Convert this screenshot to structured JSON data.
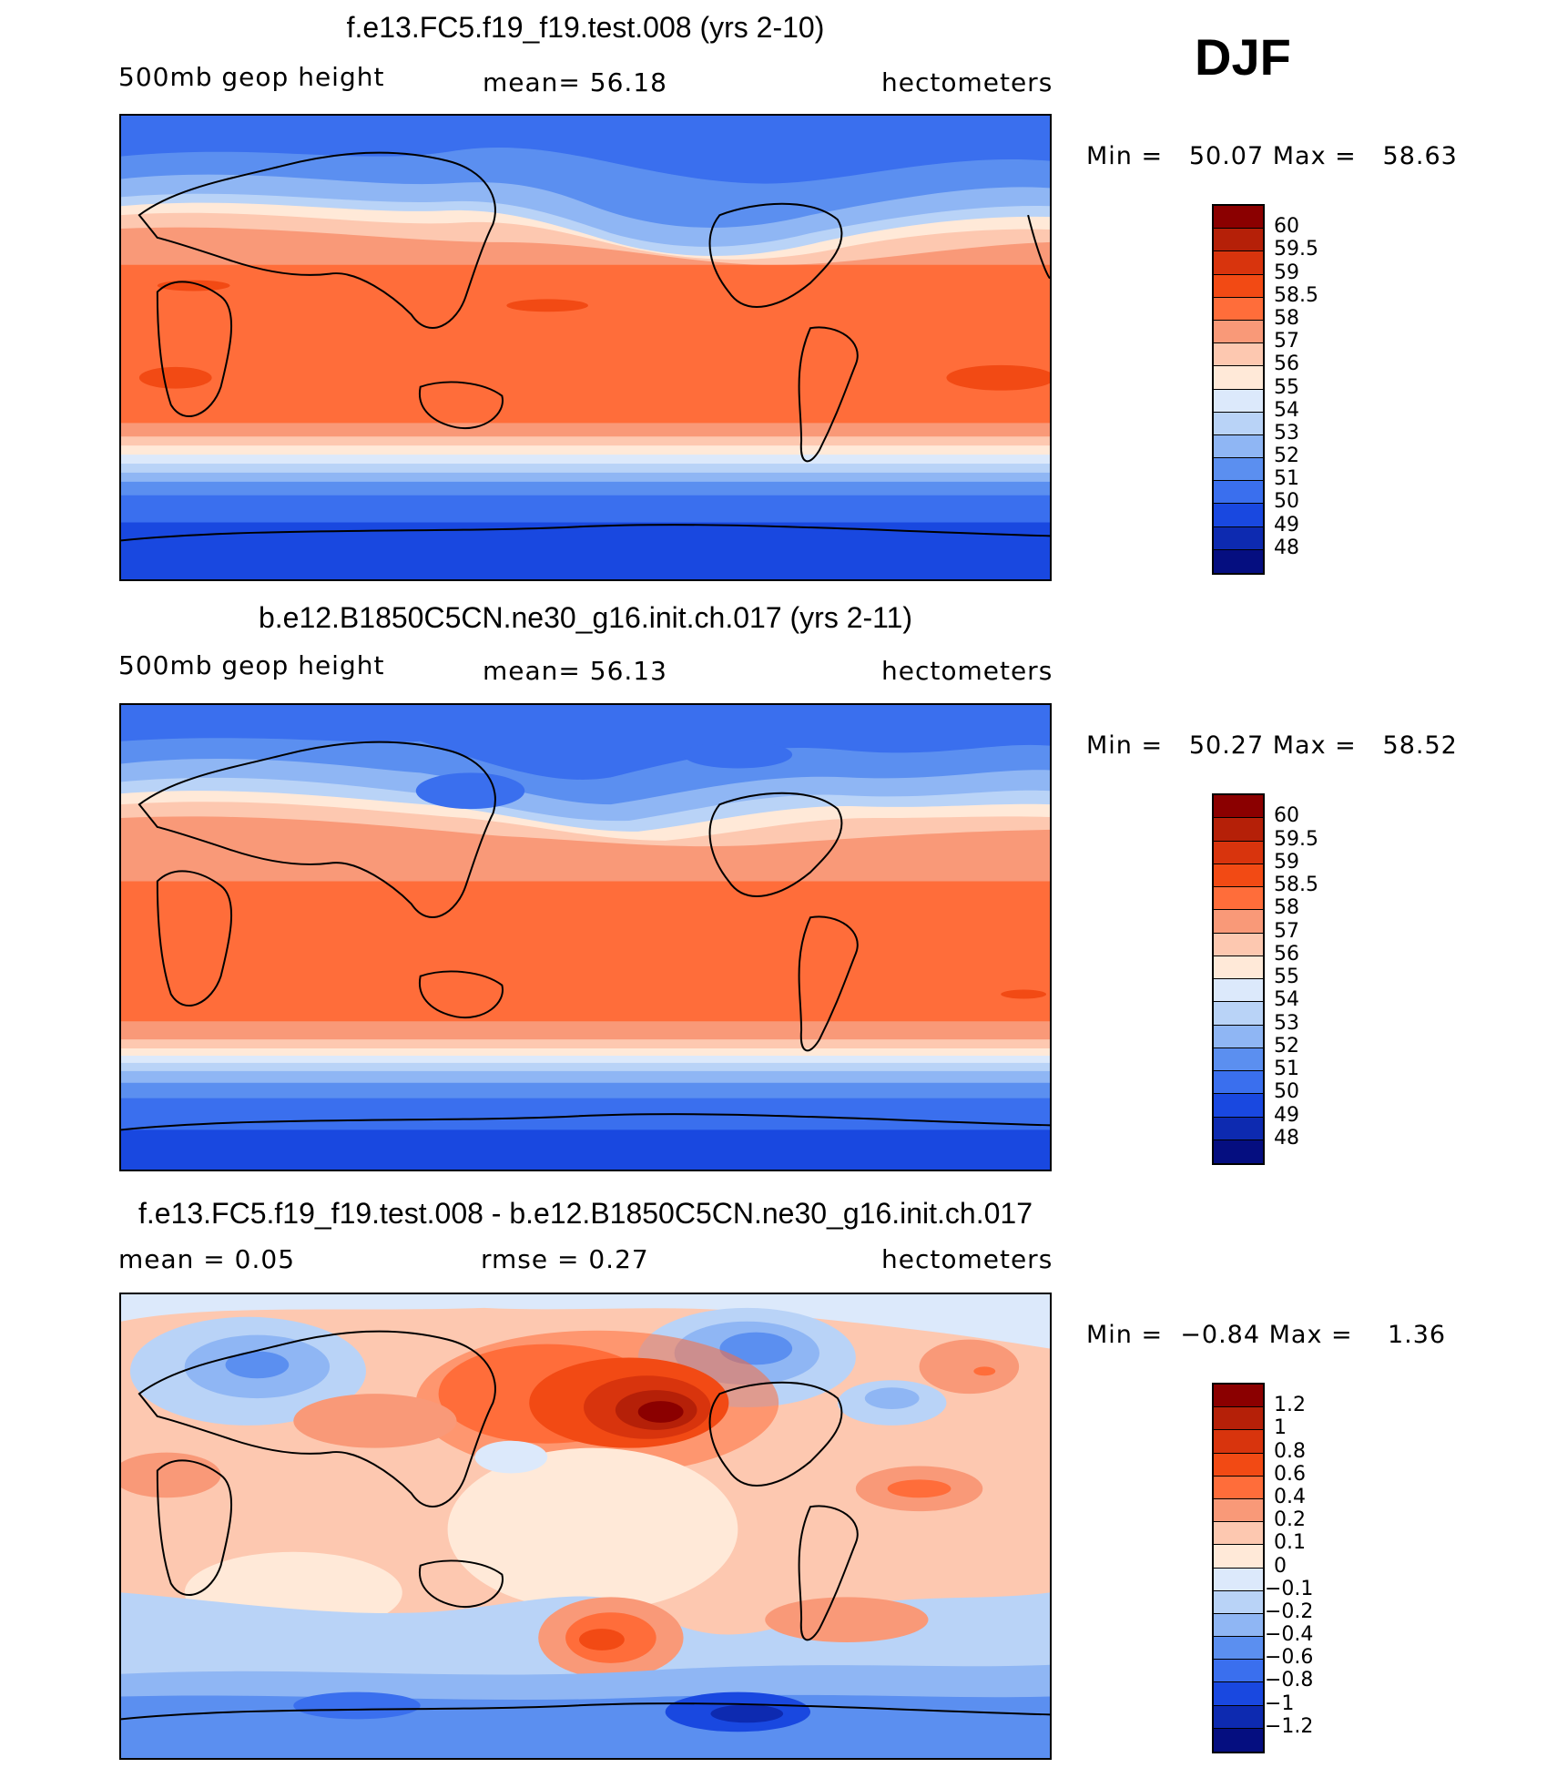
{
  "season": "DJF",
  "panels": [
    {
      "title": "f.e13.FC5.f19_f19.test.008 (yrs 2-10)",
      "variable": "500mb geop height",
      "stat": "mean=   56.18",
      "units": "hectometers",
      "minmax": "Min =   50.07 Max =   58.63",
      "colorbar": {
        "colors": [
          "#8b0000",
          "#b52008",
          "#d8340d",
          "#f24a14",
          "#ff6d3a",
          "#f99978",
          "#fdc8b0",
          "#ffe9d8",
          "#dce9fb",
          "#b9d3f7",
          "#8fb6f4",
          "#5b8ff0",
          "#3a6fee",
          "#1948e0",
          "#0d2ab0",
          "#050e80"
        ],
        "labels": [
          "60",
          "59.5",
          "59",
          "58.5",
          "58",
          "57",
          "56",
          "55",
          "54",
          "53",
          "52",
          "51",
          "50",
          "49",
          "48"
        ]
      }
    },
    {
      "title": "b.e12.B1850C5CN.ne30_g16.init.ch.017 (yrs 2-11)",
      "variable": "500mb geop height",
      "stat": "mean=   56.13",
      "units": "hectometers",
      "minmax": "Min =   50.27 Max =   58.52",
      "colorbar": {
        "colors": [
          "#8b0000",
          "#b52008",
          "#d8340d",
          "#f24a14",
          "#ff6d3a",
          "#f99978",
          "#fdc8b0",
          "#ffe9d8",
          "#dce9fb",
          "#b9d3f7",
          "#8fb6f4",
          "#5b8ff0",
          "#3a6fee",
          "#1948e0",
          "#0d2ab0",
          "#050e80"
        ],
        "labels": [
          "60",
          "59.5",
          "59",
          "58.5",
          "58",
          "57",
          "56",
          "55",
          "54",
          "53",
          "52",
          "51",
          "50",
          "49",
          "48"
        ]
      }
    },
    {
      "title": "f.e13.FC5.f19_f19.test.008 - b.e12.B1850C5CN.ne30_g16.init.ch.017",
      "variable": "mean =     0.05",
      "stat": "rmse =    0.27",
      "units": "hectometers",
      "minmax": "Min =  −0.84 Max =    1.36",
      "colorbar": {
        "colors": [
          "#8b0000",
          "#b52008",
          "#d8340d",
          "#f24a14",
          "#ff6d3a",
          "#f99978",
          "#fdc8b0",
          "#ffe9d8",
          "#dce9fb",
          "#b9d3f7",
          "#8fb6f4",
          "#5b8ff0",
          "#3a6fee",
          "#1948e0",
          "#0d2ab0",
          "#050e80"
        ],
        "labels": [
          "1.2",
          "1",
          "0.8",
          "0.6",
          "0.4",
          "0.2",
          "0.1",
          "0",
          "−0.1",
          "−0.2",
          "−0.4",
          "−0.6",
          "−0.8",
          "−1",
          "−1.2"
        ]
      }
    }
  ]
}
